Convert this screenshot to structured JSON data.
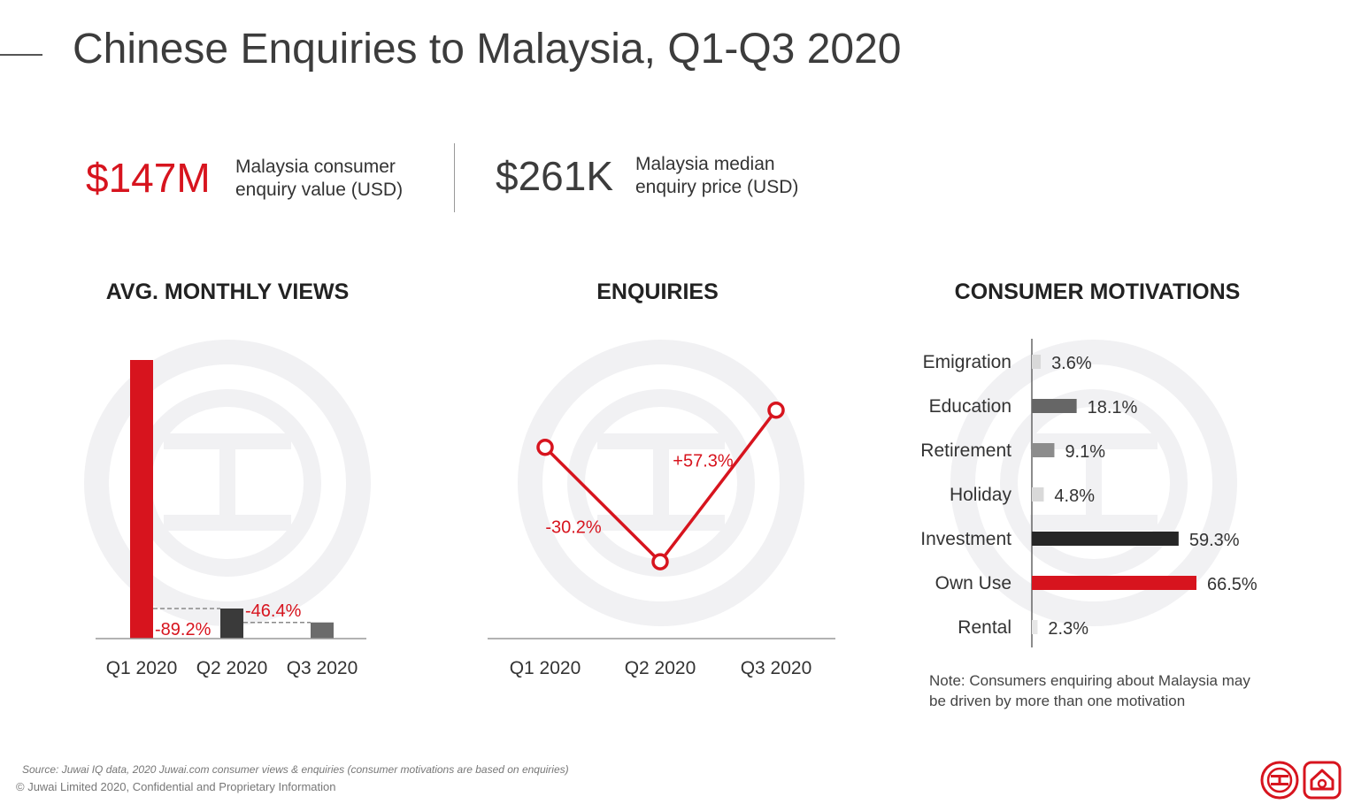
{
  "header": {
    "title": "Chinese Enquiries to Malaysia, Q1-Q3 2020"
  },
  "kpis": [
    {
      "value": "$147M",
      "label": "Malaysia consumer\nenquiry value (USD)",
      "color": "#d7141e"
    },
    {
      "value": "$261K",
      "label": "Malaysia median\nenquiry price (USD)",
      "color": "#3c3c3c"
    }
  ],
  "sections": {
    "views_title": "AVG. MONTHLY VIEWS",
    "enquiries_title": "ENQUIRIES",
    "motivations_title": "CONSUMER MOTIVATIONS"
  },
  "colors": {
    "accent": "#d7141e",
    "dark": "#3a3a3a",
    "mid": "#6b6b6b",
    "watermark": "#f1f1f3"
  },
  "chart_data": [
    {
      "id": "views",
      "type": "bar",
      "title": "AVG. MONTHLY VIEWS",
      "categories": [
        "Q1 2020",
        "Q2 2020",
        "Q3 2020"
      ],
      "values": [
        100,
        10.8,
        5.8
      ],
      "ylim": [
        0,
        100
      ],
      "colors": [
        "#d7141e",
        "#3a3a3a",
        "#6b6b6b"
      ],
      "annotations": [
        {
          "text": "-89.2%",
          "from": 0,
          "to": 1
        },
        {
          "text": "-46.4%",
          "from": 1,
          "to": 2
        }
      ]
    },
    {
      "id": "enquiries",
      "type": "line",
      "title": "ENQUIRIES",
      "categories": [
        "Q1 2020",
        "Q2 2020",
        "Q3 2020"
      ],
      "values": [
        100,
        69.8,
        109.8
      ],
      "ylim": [
        50,
        120
      ],
      "color": "#d7141e",
      "annotations": [
        {
          "text": "-30.2%",
          "segment": 0
        },
        {
          "text": "+57.3%",
          "segment": 1
        }
      ]
    },
    {
      "id": "motivations",
      "type": "bar",
      "orientation": "horizontal",
      "title": "CONSUMER MOTIVATIONS",
      "categories": [
        "Emigration",
        "Education",
        "Retirement",
        "Holiday",
        "Investment",
        "Own Use",
        "Rental"
      ],
      "values": [
        3.6,
        18.1,
        9.1,
        4.8,
        59.3,
        66.5,
        2.3
      ],
      "value_labels": [
        "3.6%",
        "18.1%",
        "9.1%",
        "4.8%",
        "59.3%",
        "66.5%",
        "2.3%"
      ],
      "colors": [
        "#d9d9d9",
        "#666666",
        "#8c8c8c",
        "#d9d9d9",
        "#262626",
        "#d7141e",
        "#e6e6e6"
      ],
      "xlim": [
        0,
        66.5
      ]
    }
  ],
  "note": "Note: Consumers enquiring about Malaysia may be driven by more than one motivation",
  "footer": {
    "source": "Source: Juwai IQ data, 2020 Juwai.com consumer views & enquiries (consumer motivations are based on enquiries)",
    "copyright": "© Juwai Limited 2020, Confidential and Proprietary Information"
  },
  "logos": [
    "juwai-coin-icon",
    "juwai-house-icon"
  ]
}
